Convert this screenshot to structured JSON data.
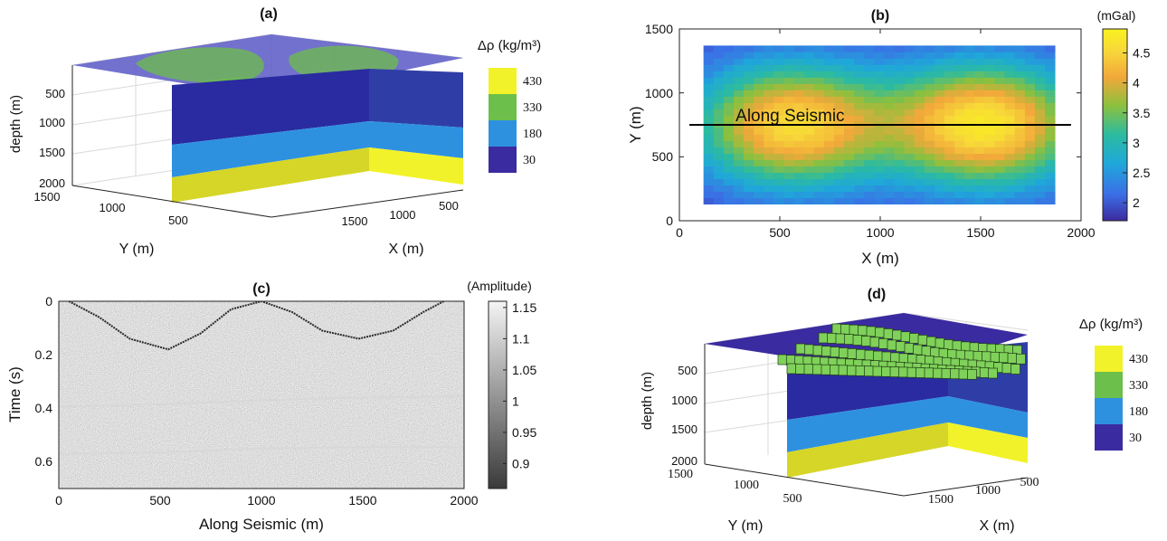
{
  "colors": {
    "density": [
      "#3b2ba0",
      "#2e91e0",
      "#6cbf4a",
      "#f2f22a"
    ],
    "gravity_ramp": [
      "#3d2a9e",
      "#3b6fe6",
      "#1fa8d9",
      "#2cbba0",
      "#8cc03e",
      "#f2a83a",
      "#f7d63a",
      "#f9f21e"
    ],
    "gray_ramp": [
      "#3a3a3a",
      "#f4f4f4"
    ]
  },
  "panels": {
    "a": {
      "label": "(a)",
      "zlabel": "depth (m)",
      "ylabel": "Y (m)",
      "xlabel": "X (m)",
      "zticks": [
        "500",
        "1000",
        "1500",
        "2000"
      ],
      "yticks": [
        "1500",
        "1000",
        "500"
      ],
      "xticks": [
        "1500",
        "1000",
        "500"
      ],
      "cb_title": "Δρ (kg/m³)",
      "cb_labels": [
        "430",
        "330",
        "180",
        "30"
      ]
    },
    "b": {
      "label": "(b)",
      "xlabel": "X (m)",
      "ylabel": "Y (m)",
      "xticks": [
        "0",
        "500",
        "1000",
        "1500",
        "2000"
      ],
      "yticks": [
        "0",
        "500",
        "1000",
        "1500"
      ],
      "annotation": "Along Seismic",
      "cb_title": "(mGal)",
      "cb_ticks": [
        "4.5",
        "4",
        "3.5",
        "3",
        "2.5",
        "2"
      ]
    },
    "c": {
      "label": "(c)",
      "xlabel": "Along Seismic (m)",
      "ylabel": "Time (s)",
      "xticks": [
        "0",
        "500",
        "1000",
        "1500",
        "2000"
      ],
      "yticks": [
        "0",
        "0.2",
        "0.4",
        "0.6"
      ],
      "cb_title": "(Amplitude)",
      "cb_ticks": [
        "1.15",
        "1.1",
        "1.05",
        "1",
        "0.95",
        "0.9"
      ]
    },
    "d": {
      "label": "(d)",
      "zlabel": "depth (m)",
      "ylabel": "Y (m)",
      "xlabel": "X (m)",
      "zticks": [
        "500",
        "1000",
        "1500",
        "2000"
      ],
      "yticks": [
        "1500",
        "1000",
        "500"
      ],
      "xticks": [
        "1500",
        "1000",
        "500"
      ],
      "cb_title": "Δρ (kg/m³)",
      "cb_labels": [
        "430",
        "330",
        "180",
        "30"
      ]
    }
  },
  "chart_data": [
    {
      "type": "heatmap",
      "panel": "a",
      "title": "(a)",
      "description_units": "3D density-contrast model",
      "z_ticks": [
        500,
        1000,
        1500,
        2000
      ],
      "y_ticks": [
        1500,
        1000,
        500
      ],
      "x_ticks": [
        1500,
        1000,
        500
      ],
      "legend": [
        "430",
        "330",
        "180",
        "30"
      ]
    },
    {
      "type": "heatmap",
      "panel": "b",
      "title": "(b)",
      "xlim": [
        0,
        2000
      ],
      "ylim": [
        0,
        1500
      ],
      "x_ticks": [
        0,
        500,
        1000,
        1500,
        2000
      ],
      "y_ticks": [
        0,
        500,
        1000,
        1500
      ],
      "colorbar_range": [
        1.7,
        4.9
      ],
      "colorbar_ticks": [
        2,
        2.5,
        3,
        3.5,
        4,
        4.5
      ],
      "anomalies": [
        {
          "x": 560,
          "y": 750,
          "peak": 4.5
        },
        {
          "x": 1520,
          "y": 750,
          "peak": 4.7
        }
      ],
      "grid_extent": {
        "x": [
          120,
          1870
        ],
        "y": [
          130,
          1370
        ]
      },
      "profile_line": {
        "x": [
          50,
          1950
        ],
        "y": 750,
        "label": "Along Seismic"
      }
    },
    {
      "type": "heatmap",
      "panel": "c",
      "title": "(c)",
      "xlim": [
        0,
        2000
      ],
      "ylim": [
        0,
        0.7
      ],
      "x_ticks": [
        0,
        500,
        1000,
        1500,
        2000
      ],
      "y_ticks": [
        0,
        0.2,
        0.4,
        0.6
      ],
      "colorbar_range": [
        0.86,
        1.16
      ],
      "colorbar_ticks": [
        0.9,
        0.95,
        1,
        1.05,
        1.1,
        1.15
      ],
      "reflectors": [
        {
          "name": "top",
          "points": [
            [
              50,
              0
            ],
            [
              200,
              0.06
            ],
            [
              350,
              0.14
            ],
            [
              540,
              0.18
            ],
            [
              700,
              0.12
            ],
            [
              850,
              0.03
            ],
            [
              1000,
              0
            ],
            [
              1150,
              0.04
            ],
            [
              1300,
              0.11
            ],
            [
              1480,
              0.14
            ],
            [
              1650,
              0.11
            ],
            [
              1800,
              0.04
            ],
            [
              1900,
              0
            ]
          ]
        },
        {
          "name": "middle",
          "points": [
            [
              0,
              0.395
            ],
            [
              500,
              0.385
            ],
            [
              1000,
              0.37
            ],
            [
              1500,
              0.36
            ],
            [
              2000,
              0.355
            ]
          ]
        },
        {
          "name": "bottom",
          "points": [
            [
              0,
              0.57
            ],
            [
              500,
              0.565
            ],
            [
              1000,
              0.55
            ],
            [
              1500,
              0.545
            ],
            [
              2000,
              0.545
            ]
          ]
        }
      ]
    },
    {
      "type": "heatmap",
      "panel": "d",
      "title": "(d)",
      "z_ticks": [
        500,
        1000,
        1500,
        2000
      ],
      "y_ticks": [
        1500,
        1000,
        500
      ],
      "x_ticks": [
        1500,
        1000,
        500
      ],
      "legend": [
        "430",
        "330",
        "180",
        "30"
      ]
    }
  ]
}
